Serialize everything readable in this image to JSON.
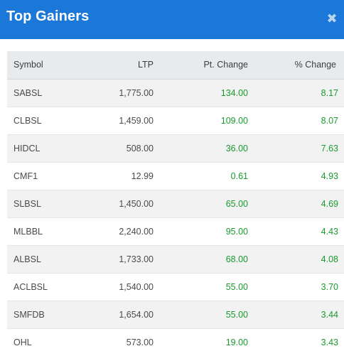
{
  "header": {
    "title": "Top Gainers",
    "close_symbol": "✖",
    "color": "#1c78d8"
  },
  "table": {
    "columns": [
      "Symbol",
      "LTP",
      "Pt. Change",
      "% Change"
    ],
    "rows": [
      {
        "symbol": "SABSL",
        "ltp": "1,775.00",
        "pt_change": "134.00",
        "pct_change": "8.17"
      },
      {
        "symbol": "CLBSL",
        "ltp": "1,459.00",
        "pt_change": "109.00",
        "pct_change": "8.07"
      },
      {
        "symbol": "HIDCL",
        "ltp": "508.00",
        "pt_change": "36.00",
        "pct_change": "7.63"
      },
      {
        "symbol": "CMF1",
        "ltp": "12.99",
        "pt_change": "0.61",
        "pct_change": "4.93"
      },
      {
        "symbol": "SLBSL",
        "ltp": "1,450.00",
        "pt_change": "65.00",
        "pct_change": "4.69"
      },
      {
        "symbol": "MLBBL",
        "ltp": "2,240.00",
        "pt_change": "95.00",
        "pct_change": "4.43"
      },
      {
        "symbol": "ALBSL",
        "ltp": "1,733.00",
        "pt_change": "68.00",
        "pct_change": "4.08"
      },
      {
        "symbol": "ACLBSL",
        "ltp": "1,540.00",
        "pt_change": "55.00",
        "pct_change": "3.70"
      },
      {
        "symbol": "SMFDB",
        "ltp": "1,654.00",
        "pt_change": "55.00",
        "pct_change": "3.44"
      },
      {
        "symbol": "OHL",
        "ltp": "573.00",
        "pt_change": "19.00",
        "pct_change": "3.43"
      }
    ]
  },
  "colors": {
    "gain": "#1a9a2e",
    "header_bg": "#1c78d8"
  }
}
